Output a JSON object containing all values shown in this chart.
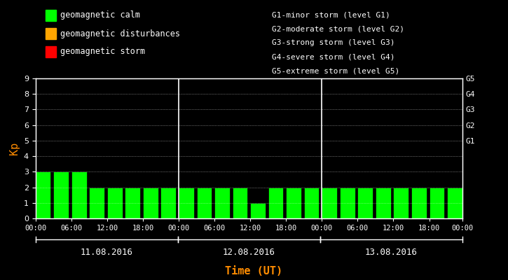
{
  "background_color": "#000000",
  "bar_color_calm": "#00ff00",
  "bar_color_disturbance": "#ffa500",
  "bar_color_storm": "#ff0000",
  "text_color": "#ffffff",
  "label_color_kp": "#ff8c00",
  "label_color_time": "#ff8c00",
  "grid_color": "#ffffff",
  "axis_color": "#ffffff",
  "days": [
    "11.08.2016",
    "12.08.2016",
    "13.08.2016"
  ],
  "kp_values": [
    3,
    3,
    3,
    2,
    2,
    2,
    2,
    2,
    2,
    2,
    2,
    2,
    1,
    2,
    2,
    2,
    2,
    2,
    2,
    2,
    2,
    2,
    2,
    2
  ],
  "ylim": [
    0,
    9
  ],
  "yticks": [
    0,
    1,
    2,
    3,
    4,
    5,
    6,
    7,
    8,
    9
  ],
  "right_labels": [
    [
      5,
      "G1"
    ],
    [
      6,
      "G2"
    ],
    [
      7,
      "G3"
    ],
    [
      8,
      "G4"
    ],
    [
      9,
      "G5"
    ]
  ],
  "legend_left": [
    [
      "geomagnetic calm",
      "#00ff00"
    ],
    [
      "geomagnetic disturbances",
      "#ffa500"
    ],
    [
      "geomagnetic storm",
      "#ff0000"
    ]
  ],
  "legend_right_lines": [
    "G1-minor storm (level G1)",
    "G2-moderate storm (level G2)",
    "G3-strong storm (level G3)",
    "G4-severe storm (level G4)",
    "G5-extreme storm (level G5)"
  ],
  "xlabel": "Time (UT)",
  "ylabel": "Kp",
  "hours_per_bar": 3,
  "bars_per_day": 8,
  "num_days": 3
}
